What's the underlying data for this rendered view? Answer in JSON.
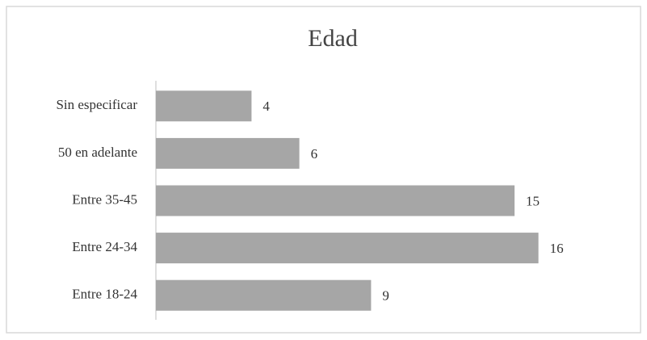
{
  "chart_data": {
    "type": "bar",
    "orientation": "horizontal",
    "title": "Edad",
    "categories": [
      "Sin especificar",
      "50 en adelante",
      "Entre 35-45",
      "Entre 24-34",
      "Entre 18-24"
    ],
    "values": [
      4,
      6,
      15,
      16,
      9
    ],
    "color": "#a6a6a6"
  }
}
